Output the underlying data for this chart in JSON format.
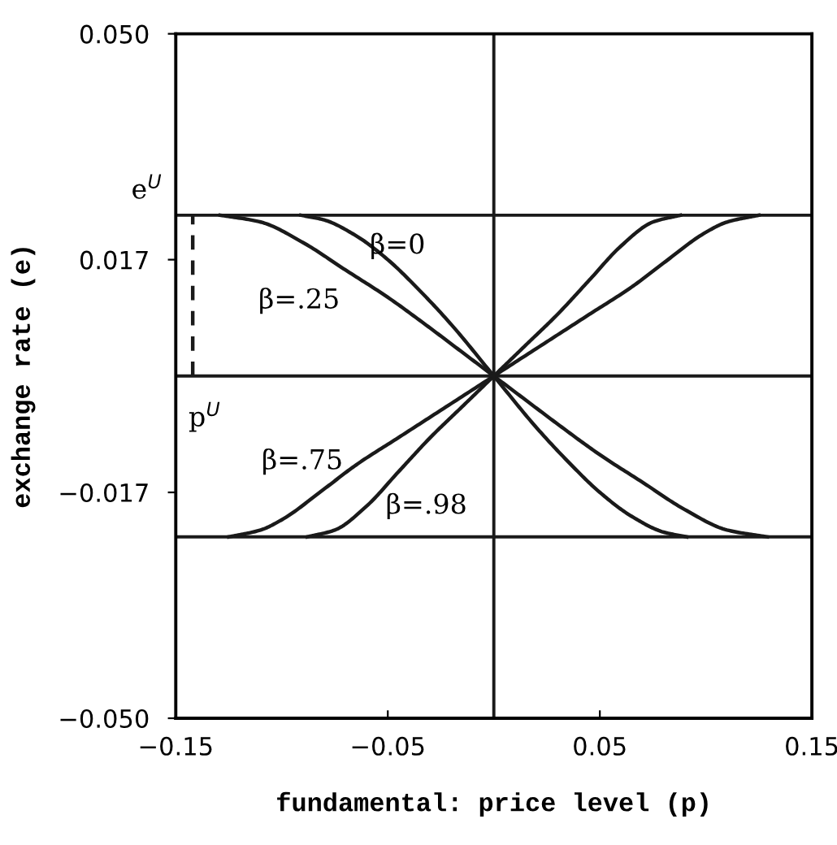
{
  "chart_data": {
    "type": "line",
    "xlabel": "fundamental: price level (p)",
    "ylabel": "exchange rate (e)",
    "xlim": [
      -0.15,
      0.15
    ],
    "ylim": [
      -0.05,
      0.05
    ],
    "xticks": [
      {
        "value": -0.15,
        "label": "−0.15"
      },
      {
        "value": -0.05,
        "label": "−0.05"
      },
      0.05,
      0.15
    ],
    "yticks": [
      {
        "value": -0.05,
        "label": "−0.050"
      },
      {
        "value": -0.017,
        "label": "−0.017"
      },
      0.017,
      {
        "value": 0.05,
        "label": "0.050"
      }
    ],
    "grid": false,
    "legend": false,
    "marker": "none",
    "series": [
      {
        "color": "#1a1a1a",
        "x": [
          -0.129,
          -0.11,
          -0.09,
          -0.07,
          -0.05,
          -0.03,
          -0.015,
          0,
          0.015,
          0.03,
          0.05,
          0.07,
          0.09,
          0.11,
          0.129
        ],
        "values": [
          0.0235,
          0.0225,
          0.0195,
          0.0155,
          0.0115,
          0.007,
          0.0035,
          0,
          -0.0035,
          -0.007,
          -0.0115,
          -0.0155,
          -0.0195,
          -0.0225,
          -0.0235
        ]
      },
      {
        "color": "#1a1a1a",
        "x": [
          -0.091,
          -0.08,
          -0.065,
          -0.05,
          -0.035,
          -0.02,
          0,
          0.02,
          0.035,
          0.05,
          0.065,
          0.08,
          0.091
        ],
        "values": [
          0.0235,
          0.0228,
          0.0205,
          0.017,
          0.0125,
          0.0075,
          0,
          -0.0075,
          -0.0125,
          -0.017,
          -0.0205,
          -0.0228,
          -0.0235
        ]
      },
      {
        "color": "#1a1a1a",
        "x": [
          -0.125,
          -0.11,
          -0.1,
          -0.08,
          -0.065,
          -0.045,
          -0.025,
          0,
          0.025,
          0.045,
          0.065,
          0.08,
          0.1,
          0.11,
          0.125
        ],
        "values": [
          -0.0235,
          -0.0225,
          -0.021,
          -0.0165,
          -0.013,
          -0.009,
          -0.005,
          0,
          0.005,
          0.009,
          0.013,
          0.0165,
          0.021,
          0.0225,
          0.0235
        ]
      },
      {
        "color": "#1a1a1a",
        "x": [
          -0.088,
          -0.075,
          -0.06,
          -0.045,
          -0.03,
          -0.015,
          0,
          0.015,
          0.03,
          0.045,
          0.06,
          0.075,
          0.088
        ],
        "values": [
          -0.0235,
          -0.0225,
          -0.019,
          -0.014,
          -0.009,
          -0.0045,
          0,
          0.0045,
          0.009,
          0.014,
          0.019,
          0.0225,
          0.0235
        ]
      },
      {
        "color": "#1a1a1a",
        "line_style": "dashed",
        "x": [
          -0.142,
          -0.142
        ],
        "values": [
          0,
          0.0235
        ]
      }
    ],
    "ref_lines": [
      {
        "axis": "y",
        "value": 0.0235,
        "color": "#1a1a1a"
      },
      {
        "axis": "y",
        "value": 0,
        "color": "#1a1a1a"
      },
      {
        "axis": "y",
        "value": -0.0235,
        "color": "#1a1a1a"
      },
      {
        "axis": "x",
        "value": 0,
        "color": "#1a1a1a"
      }
    ],
    "annotations": [
      "β=0",
      "β=.25",
      "β=.75",
      "β=.98",
      "e$^{U}$",
      "p$^{U}$"
    ]
  }
}
